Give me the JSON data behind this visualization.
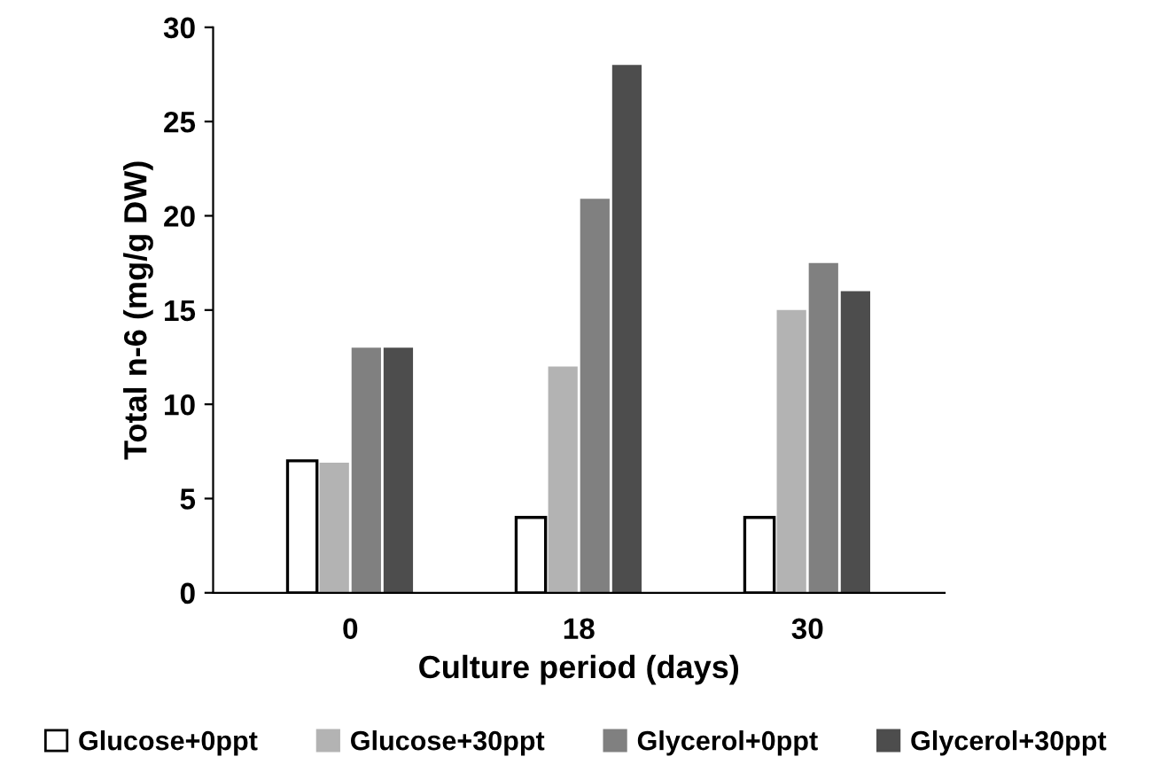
{
  "chart_data": {
    "type": "bar",
    "xlabel": "Culture period (days)",
    "ylabel": "Total n-6 (mg/g DW)",
    "categories": [
      "0",
      "18",
      "30"
    ],
    "series": [
      {
        "name": "Glucose+0ppt",
        "color": "#ffffff",
        "values": [
          7,
          4,
          4
        ]
      },
      {
        "name": "Glucose+30ppt",
        "color": "#b3b3b3",
        "values": [
          6.9,
          12,
          15
        ]
      },
      {
        "name": "Glycerol+0ppt",
        "color": "#808080",
        "values": [
          13,
          20.9,
          17.5
        ]
      },
      {
        "name": "Glycerol+30ppt",
        "color": "#4d4d4d",
        "values": [
          13,
          28,
          16
        ]
      }
    ],
    "ylim": [
      0,
      30
    ],
    "yticks": [
      0,
      5,
      10,
      15,
      20,
      25,
      30
    ],
    "grid": false,
    "legend": "bottom"
  }
}
